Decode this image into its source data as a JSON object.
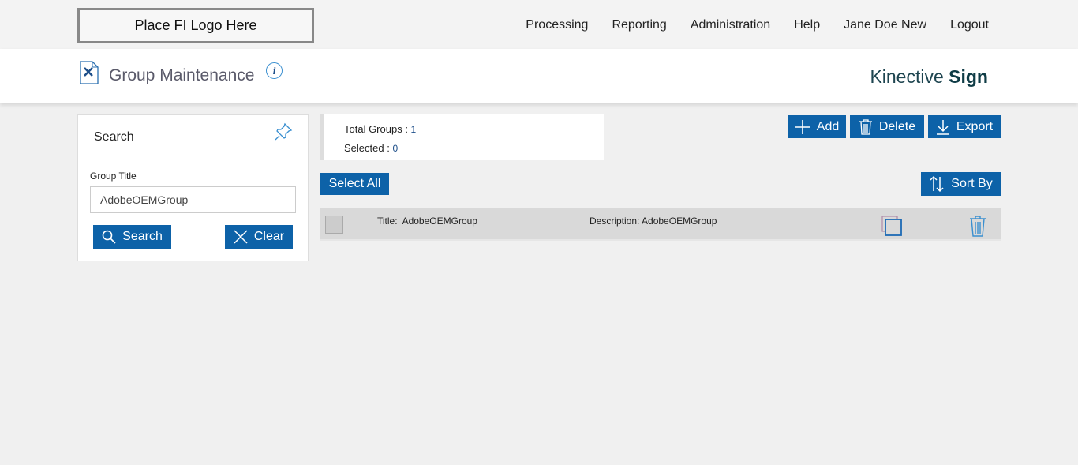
{
  "topbar": {
    "logo_text": "Place FI Logo Here",
    "nav": [
      "Processing",
      "Reporting",
      "Administration",
      "Help",
      "Jane Doe New",
      "Logout"
    ]
  },
  "header": {
    "title": "Group Maintenance",
    "info_label": "i",
    "brand_light": "Kinective ",
    "brand_bold": "Sign"
  },
  "search": {
    "title": "Search",
    "field_label": "Group Title",
    "field_value": "AdobeOEMGroup",
    "search_label": "Search",
    "clear_label": "Clear"
  },
  "stats": {
    "total_label": "Total Groups : ",
    "total_value": "1",
    "selected_label": "Selected : ",
    "selected_value": "0"
  },
  "toolbar": {
    "add": "Add",
    "delete": "Delete",
    "export": "Export",
    "select_all": "Select All",
    "sort_by": "Sort By"
  },
  "rows": [
    {
      "title_label": "Title:",
      "title": "AdobeOEMGroup",
      "description_label": "Description:",
      "description": "AdobeOEMGroup"
    }
  ],
  "colors": {
    "accent": "#0d62a8",
    "brand": "#0f3c46"
  }
}
